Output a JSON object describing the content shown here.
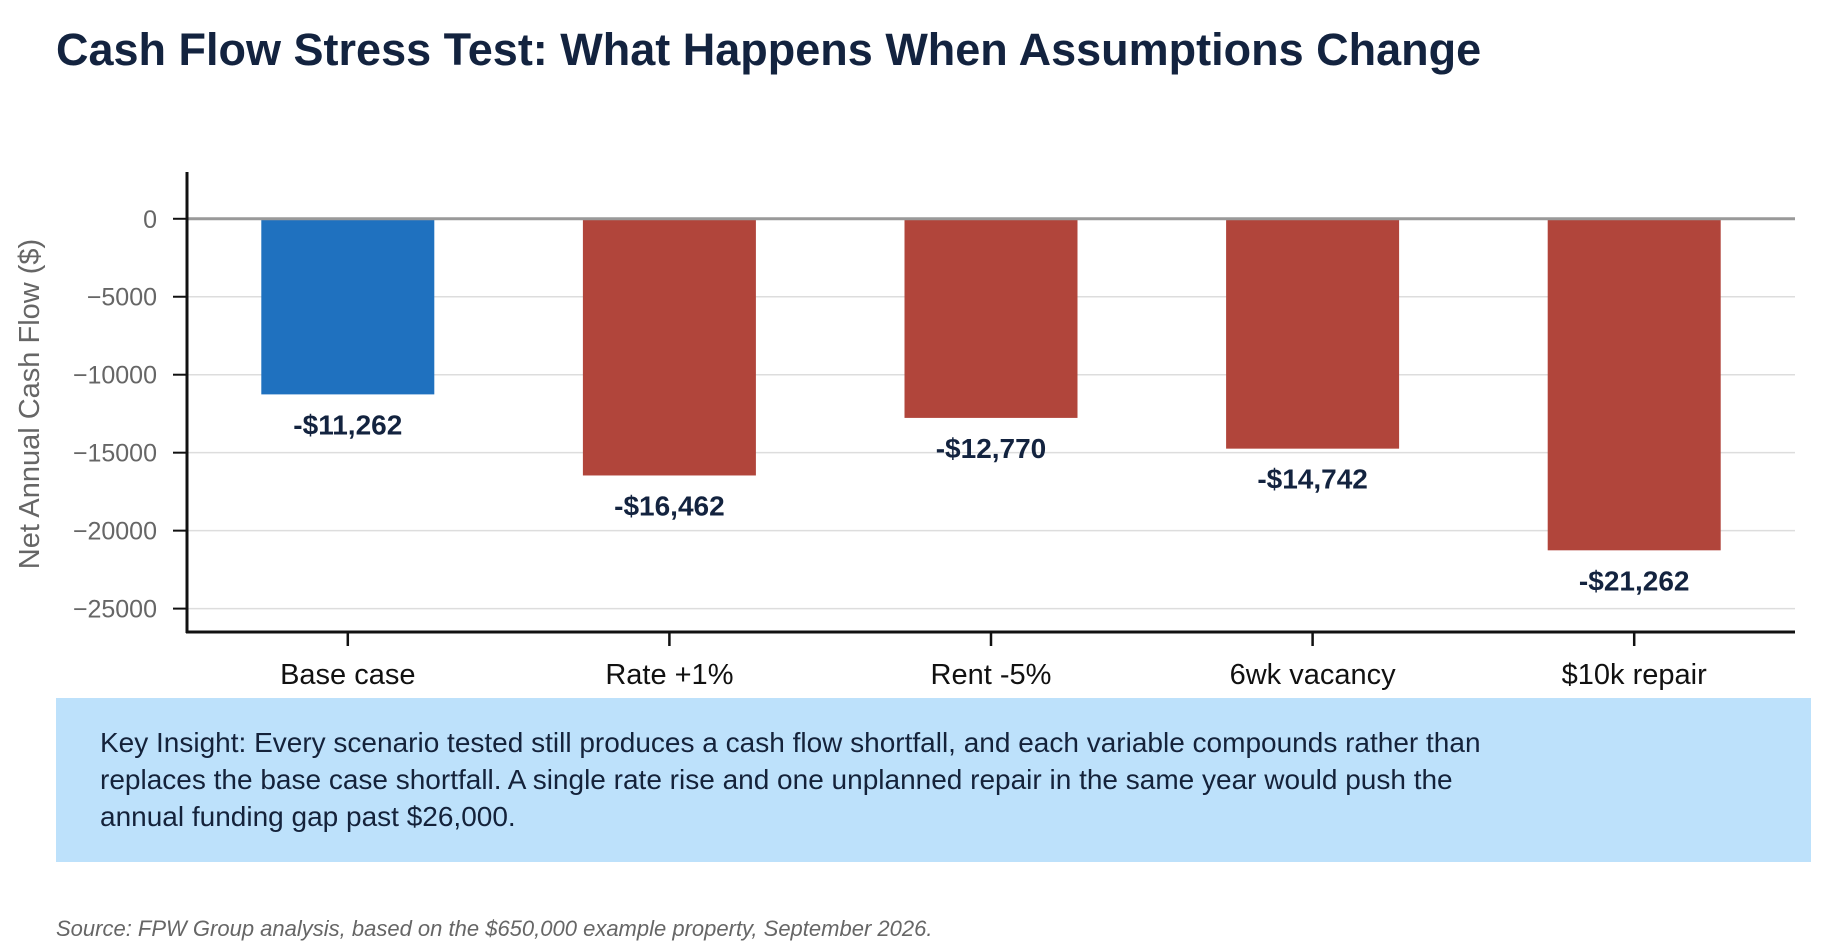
{
  "title": "Cash Flow Stress Test: What Happens When Assumptions Change",
  "chart_data": {
    "type": "bar",
    "ylabel": "Net Annual Cash Flow ($)",
    "categories": [
      "Base case",
      "Rate +1%",
      "Rent -5%",
      "6wk vacancy",
      "$10k repair"
    ],
    "values": [
      -11262,
      -16462,
      -12770,
      -14742,
      -21262
    ],
    "value_labels": [
      "-$11,262",
      "-$16,462",
      "-$12,770",
      "-$14,742",
      "-$21,262"
    ],
    "yticks": [
      0,
      -5000,
      -10000,
      -15000,
      -20000,
      -25000
    ],
    "ytick_labels": [
      "0",
      "−5000",
      "−10000",
      "−15000",
      "−20000",
      "−25000"
    ],
    "ylim": [
      -26500,
      3000
    ],
    "grid": true,
    "colors": {
      "base": "#1f71bf",
      "stress": "#b1453b",
      "zero_line": "#999999",
      "grid": "#dddddd",
      "axis": "#111111",
      "tick_label": "#666666",
      "value_label": "#13233f"
    }
  },
  "insight": {
    "text": "Key Insight: Every scenario tested still produces a cash flow shortfall, and each variable compounds rather than replaces the base case shortfall. A single rate rise and one unplanned repair in the same year would push the annual funding gap past $26,000."
  },
  "source": "Source: FPW Group analysis, based on the $650,000 example property, September 2026."
}
